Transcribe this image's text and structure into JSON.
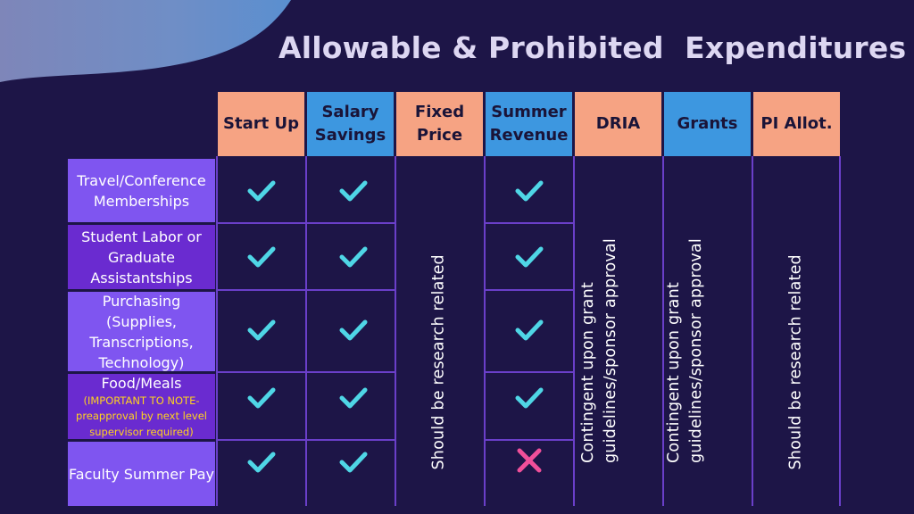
{
  "slide": {
    "title": "Allowable & Prohibited  Expenditures"
  },
  "colors": {
    "background": "#1d1547",
    "header_salmon": "#f6a383",
    "header_blue": "#3d97e0",
    "row_label": "#7f55f0",
    "grid": "#6a3fc9",
    "check": "#4fd6e6",
    "cross": "#f04f9a",
    "note_text": "#ffd21e"
  },
  "table": {
    "columns": [
      {
        "label": "Start Up"
      },
      {
        "label": "Salary\nSavings"
      },
      {
        "label": "Fixed\nPrice"
      },
      {
        "label": "Summer\nRevenue"
      },
      {
        "label": "DRIA"
      },
      {
        "label": "Grants"
      },
      {
        "label": "PI Allot."
      }
    ],
    "rows": [
      {
        "label": "Travel/Conference\nMemberships"
      },
      {
        "label": "Student Labor or\nGraduate\nAssistantships"
      },
      {
        "label": "Purchasing\n(Supplies,\nTranscriptions,\nTechnology)"
      },
      {
        "label": "Food/Meals",
        "note": "(IMPORTANT TO NOTE-\npreapproval by next level\nsupervisor required)"
      },
      {
        "label": "Faculty Summer Pay"
      }
    ],
    "marks_legend": {
      "check": "check-icon",
      "cross": "x-icon"
    },
    "column_notes": {
      "fixed_price": "Should be research related",
      "dria": "Contingent upon grant\nguidelines/sponsor approval",
      "grants": "Contingent upon grant\nguidelines/sponsor approval",
      "pi_allot": "Should be research related"
    }
  }
}
